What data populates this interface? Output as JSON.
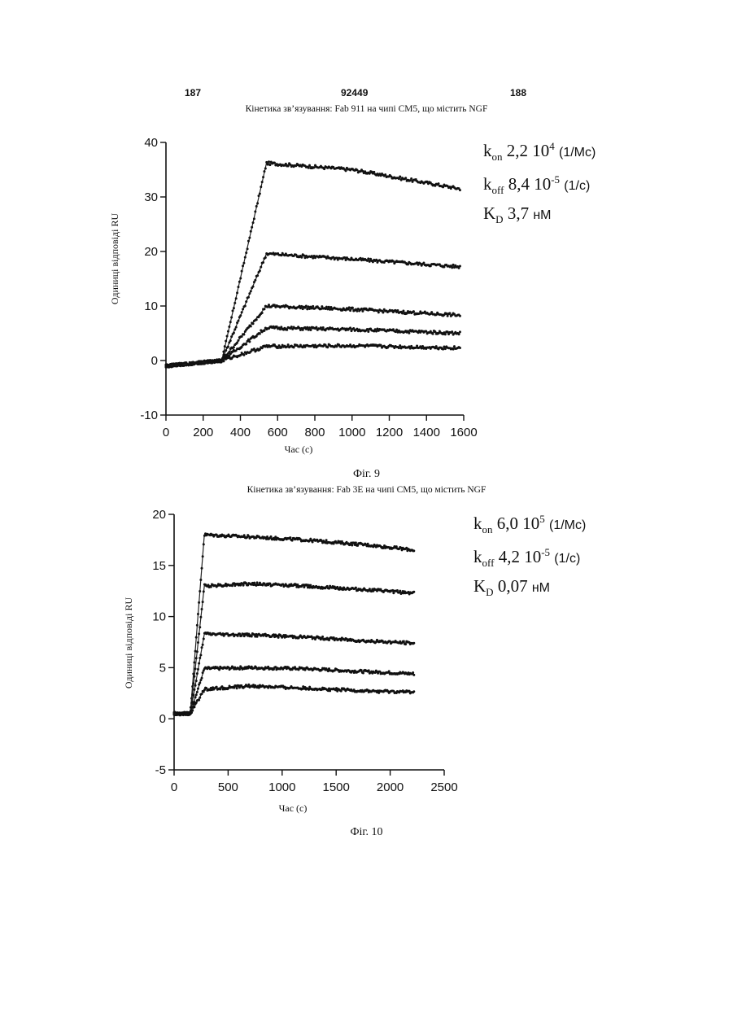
{
  "header": {
    "left": "187",
    "center": "92449",
    "right": "188"
  },
  "figures": [
    {
      "title": "Кінетика зв’язування: Fab 911 на чипі CM5, що містить NGF",
      "caption": "Фіг. 9",
      "params": {
        "kon_sym": "k",
        "kon_sub": "on",
        "kon_val": "2,2 10",
        "kon_exp": "4",
        "kon_unit": "(1/Mc)",
        "koff_sym": "k",
        "koff_sub": "off",
        "koff_val": "8,4 10",
        "koff_exp": "-5",
        "koff_unit": "(1/c)",
        "kd_sym": "K",
        "kd_sub": "D",
        "kd_val": "3,7",
        "kd_unit": "нМ"
      }
    },
    {
      "title": "Кінетика зв’язування: Fab 3E на чипі CM5, що містить NGF",
      "caption": "Фіг. 10",
      "params": {
        "kon_sym": "k",
        "kon_sub": "on",
        "kon_val": "6,0 10",
        "kon_exp": "5",
        "kon_unit": "(1/Mc)",
        "koff_sym": "k",
        "koff_sub": "off",
        "koff_val": "4,2 10",
        "koff_exp": "-5",
        "koff_unit": "(1/c)",
        "kd_sym": "K",
        "kd_sub": "D",
        "kd_val": "0,07",
        "kd_unit": "нМ"
      }
    }
  ],
  "chart_data": [
    {
      "type": "scatter",
      "title": "Кінетика зв’язування: Fab 911 на чипі CM5, що містить NGF",
      "xlabel": "Час (с)",
      "ylabel": "Одиниці відповіді RU",
      "xlim": [
        0,
        1600
      ],
      "ylim": [
        -10,
        40
      ],
      "xticks": [
        0,
        200,
        400,
        600,
        800,
        1000,
        1200,
        1400,
        1600
      ],
      "yticks": [
        -10,
        0,
        10,
        20,
        30,
        40
      ],
      "grid": false,
      "series": [
        {
          "x": [
            0,
            300,
            540,
            1000,
            1580
          ],
          "y": [
            -1,
            0,
            36.2,
            35,
            31.5
          ]
        },
        {
          "x": [
            0,
            300,
            540,
            1000,
            1580
          ],
          "y": [
            -1,
            0,
            19.6,
            18.6,
            17.2
          ]
        },
        {
          "x": [
            0,
            300,
            540,
            1000,
            1580
          ],
          "y": [
            -1,
            0,
            10,
            9.4,
            8.3
          ]
        },
        {
          "x": [
            0,
            300,
            540,
            1000,
            1580
          ],
          "y": [
            -1,
            0,
            6,
            5.7,
            5.0
          ]
        },
        {
          "x": [
            0,
            300,
            540,
            1000,
            1580
          ],
          "y": [
            -1,
            0,
            2.6,
            2.7,
            2.3
          ]
        }
      ]
    },
    {
      "type": "scatter",
      "title": "Кінетика зв’язування: Fab 3E на чипі CM5, що містить NGF",
      "xlabel": "Час (с)",
      "ylabel": "Одиниці відповіді RU",
      "xlim": [
        0,
        2500
      ],
      "ylim": [
        -5,
        20
      ],
      "xticks": [
        0,
        500,
        1000,
        1500,
        2000,
        2500
      ],
      "yticks": [
        -5,
        0,
        5,
        10,
        15,
        20
      ],
      "grid": false,
      "series": [
        {
          "x": [
            0,
            150,
            280,
            700,
            1200,
            1800,
            2220
          ],
          "y": [
            0.5,
            0.5,
            18,
            17.8,
            17.5,
            17,
            16.5
          ]
        },
        {
          "x": [
            0,
            150,
            280,
            700,
            1200,
            1800,
            2220
          ],
          "y": [
            0.5,
            0.5,
            13,
            13.2,
            13,
            12.6,
            12.3
          ]
        },
        {
          "x": [
            0,
            150,
            280,
            700,
            1200,
            1800,
            2220
          ],
          "y": [
            0.5,
            0.5,
            8.3,
            8.2,
            8,
            7.6,
            7.4
          ]
        },
        {
          "x": [
            0,
            150,
            280,
            700,
            1200,
            1800,
            2220
          ],
          "y": [
            0.5,
            0.5,
            4.9,
            5,
            4.9,
            4.6,
            4.4
          ]
        },
        {
          "x": [
            0,
            150,
            280,
            700,
            1200,
            1800,
            2220
          ],
          "y": [
            0.5,
            0.5,
            2.9,
            3.2,
            3.0,
            2.7,
            2.6
          ]
        }
      ]
    }
  ]
}
